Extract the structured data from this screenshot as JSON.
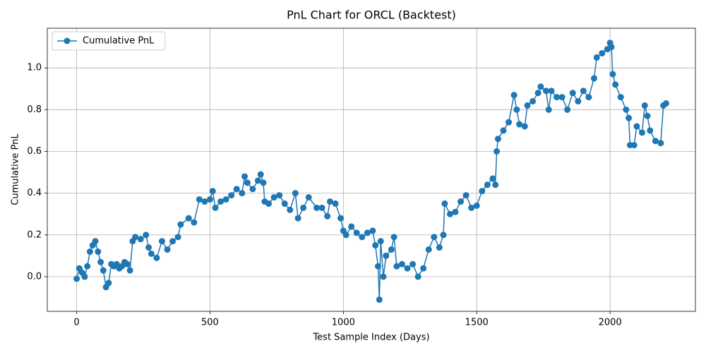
{
  "chart_data": {
    "type": "line",
    "title": "PnL Chart for ORCL (Backtest)",
    "x_label": "Test Sample Index (Days)",
    "y_label": "Cumulative PnL",
    "x": [
      0,
      10,
      20,
      30,
      40,
      50,
      60,
      70,
      80,
      90,
      100,
      110,
      120,
      130,
      140,
      150,
      160,
      170,
      180,
      190,
      200,
      210,
      220,
      240,
      260,
      270,
      280,
      300,
      320,
      340,
      360,
      380,
      390,
      420,
      440,
      460,
      480,
      500,
      510,
      520,
      540,
      560,
      580,
      600,
      620,
      630,
      640,
      660,
      680,
      690,
      700,
      705,
      720,
      740,
      760,
      780,
      800,
      820,
      830,
      850,
      870,
      900,
      920,
      940,
      950,
      970,
      990,
      1000,
      1010,
      1030,
      1050,
      1070,
      1090,
      1110,
      1120,
      1130,
      1135,
      1140,
      1150,
      1160,
      1180,
      1190,
      1200,
      1220,
      1240,
      1260,
      1280,
      1300,
      1320,
      1340,
      1360,
      1375,
      1380,
      1400,
      1420,
      1440,
      1460,
      1480,
      1500,
      1520,
      1540,
      1560,
      1570,
      1575,
      1580,
      1600,
      1620,
      1640,
      1650,
      1660,
      1680,
      1690,
      1710,
      1730,
      1740,
      1760,
      1770,
      1780,
      1800,
      1820,
      1840,
      1860,
      1880,
      1900,
      1920,
      1940,
      1950,
      1970,
      1990,
      2000,
      2005,
      2010,
      2020,
      2040,
      2060,
      2070,
      2075,
      2090,
      2100,
      2120,
      2130,
      2140,
      2150,
      2170,
      2190,
      2200,
      2210
    ],
    "series": [
      {
        "name": "Cumulative PnL",
        "color": "#1f77b4",
        "values": [
          -0.01,
          0.04,
          0.02,
          0.0,
          0.05,
          0.12,
          0.15,
          0.17,
          0.12,
          0.07,
          0.03,
          -0.05,
          -0.03,
          0.06,
          0.05,
          0.06,
          0.04,
          0.05,
          0.07,
          0.06,
          0.03,
          0.17,
          0.19,
          0.18,
          0.2,
          0.14,
          0.11,
          0.09,
          0.17,
          0.13,
          0.17,
          0.19,
          0.25,
          0.28,
          0.26,
          0.37,
          0.36,
          0.37,
          0.41,
          0.33,
          0.36,
          0.37,
          0.39,
          0.42,
          0.4,
          0.48,
          0.45,
          0.42,
          0.46,
          0.49,
          0.45,
          0.36,
          0.35,
          0.38,
          0.39,
          0.35,
          0.32,
          0.4,
          0.28,
          0.33,
          0.38,
          0.33,
          0.33,
          0.29,
          0.36,
          0.35,
          0.28,
          0.22,
          0.2,
          0.24,
          0.21,
          0.19,
          0.21,
          0.22,
          0.15,
          0.05,
          -0.11,
          0.17,
          0.0,
          0.1,
          0.13,
          0.19,
          0.05,
          0.06,
          0.04,
          0.06,
          0.0,
          0.04,
          0.13,
          0.19,
          0.14,
          0.2,
          0.35,
          0.3,
          0.31,
          0.36,
          0.39,
          0.33,
          0.34,
          0.41,
          0.44,
          0.47,
          0.44,
          0.6,
          0.66,
          0.7,
          0.74,
          0.87,
          0.8,
          0.73,
          0.72,
          0.82,
          0.84,
          0.88,
          0.91,
          0.89,
          0.8,
          0.89,
          0.86,
          0.86,
          0.8,
          0.88,
          0.84,
          0.89,
          0.86,
          0.95,
          1.05,
          1.07,
          1.09,
          1.12,
          1.1,
          0.97,
          0.92,
          0.86,
          0.8,
          0.76,
          0.63,
          0.63,
          0.72,
          0.69,
          0.82,
          0.77,
          0.7,
          0.65,
          0.64,
          0.82,
          0.83
        ]
      }
    ],
    "xlim": [
      -110,
      2320
    ],
    "ylim": [
      -0.166,
      1.19
    ],
    "xticks": [
      0,
      500,
      1000,
      1500,
      2000
    ],
    "yticks": [
      {
        "value": 0,
        "label": "0.0"
      },
      0.2,
      0.4,
      0.6,
      0.8,
      {
        "value": 1,
        "label": "1.0"
      }
    ],
    "grid": true,
    "legend": "upper left"
  }
}
